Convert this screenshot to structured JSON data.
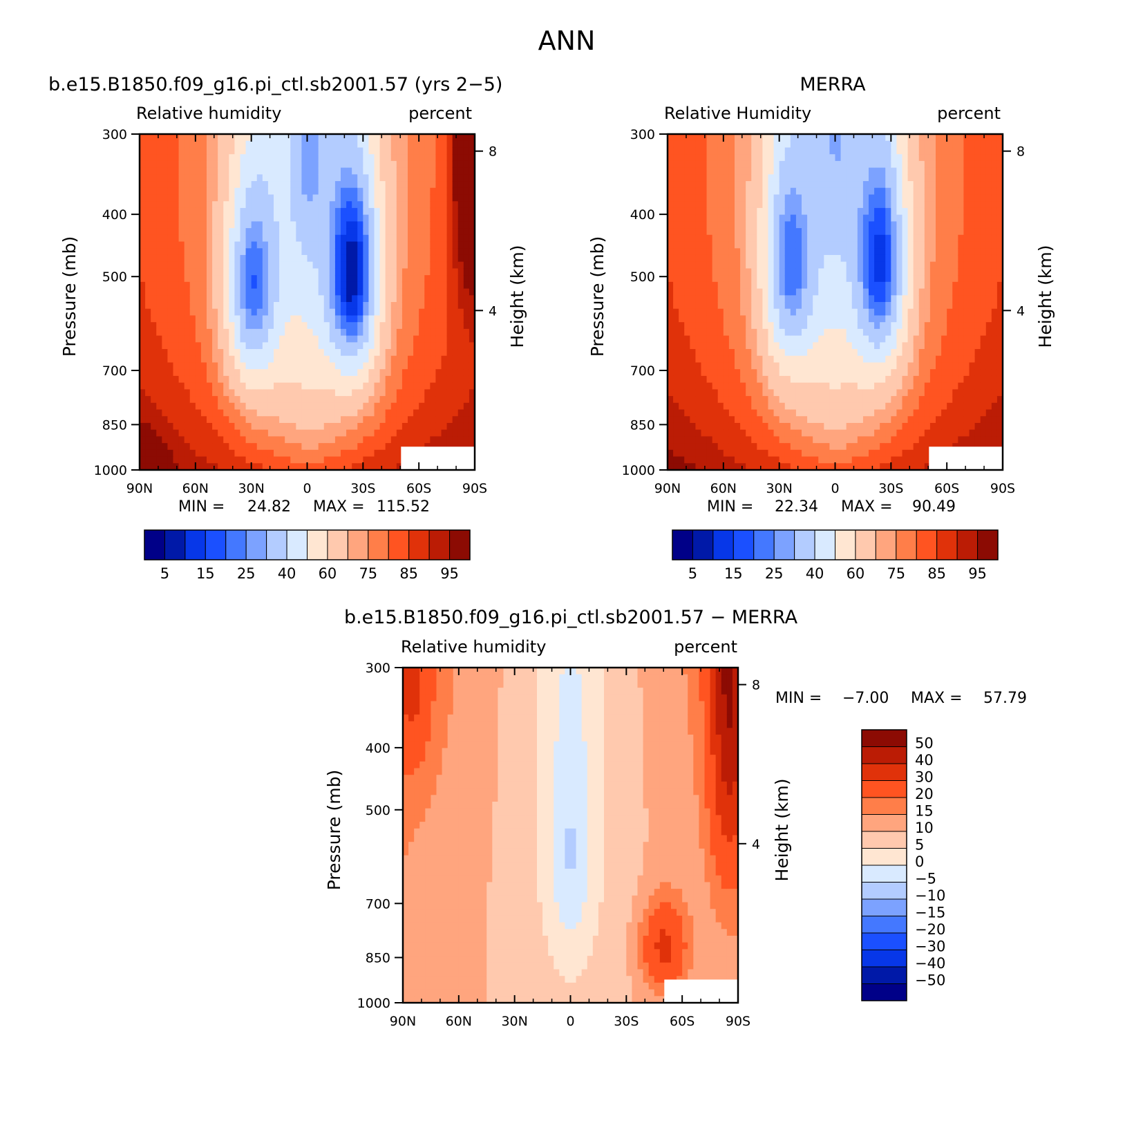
{
  "page_title": "ANN",
  "colors": {
    "abs_levels": [
      "#000088",
      "#0019a8",
      "#0737e8",
      "#1b50ff",
      "#4478ff",
      "#7ca2ff",
      "#b3ccff",
      "#d9eaff",
      "#ffe6d2",
      "#ffc9ae",
      "#ffa57e",
      "#ff7e49",
      "#ff5421",
      "#e0320a",
      "#bb1c05",
      "#8c0b03"
    ],
    "diff_levels": [
      "#000088",
      "#0019a8",
      "#0737e8",
      "#1b50ff",
      "#4478ff",
      "#7ca2ff",
      "#b3ccff",
      "#d9eaff",
      "#ffe6d2",
      "#ffc9ae",
      "#ffa57e",
      "#ff7e49",
      "#ff5421",
      "#e0320a",
      "#bb1c05",
      "#8c0b03"
    ]
  },
  "chart_data": [
    {
      "type": "heatmap",
      "id": "model",
      "title": "b.e15.B1850.f09_g16.pi_ctl.sb2001.57 (yrs 2−5)",
      "left_label": "Relative humidity",
      "right_label": "percent",
      "ylabel": "Pressure (mb)",
      "ylabel_right": "Height (km)",
      "x_ticks": [
        "90N",
        "60N",
        "30N",
        "0",
        "30S",
        "60S",
        "90S"
      ],
      "y_ticks": [
        300,
        400,
        500,
        700,
        850,
        1000
      ],
      "height_ticks": [
        8,
        4
      ],
      "ylim": [
        1000,
        300
      ],
      "xlim": [
        90,
        -90
      ],
      "min_label": "MIN =",
      "min_value": "24.82",
      "max_label": "MAX =",
      "max_value": "115.52",
      "colorbar_ticks": [
        "5",
        "15",
        "25",
        "40",
        "60",
        "75",
        "85",
        "95"
      ],
      "anomalies": [
        {
          "lat": 30,
          "p": 520,
          "sx": 14,
          "sp": 200,
          "amp": -45
        },
        {
          "lat": -25,
          "p": 500,
          "sx": 14,
          "sp": 200,
          "amp": -55
        },
        {
          "lat": 0,
          "p": 300,
          "sx": 10,
          "sp": 150,
          "amp": -20
        },
        {
          "lat": -88,
          "p": 300,
          "sx": 10,
          "sp": 220,
          "amp": 30
        },
        {
          "lat": 90,
          "p": 1000,
          "sx": 12,
          "sp": 120,
          "amp": 20
        }
      ]
    },
    {
      "type": "heatmap",
      "id": "obs",
      "title": "MERRA",
      "left_label": "Relative Humidity",
      "right_label": "percent",
      "ylabel": "Pressure (mb)",
      "ylabel_right": "Height (km)",
      "x_ticks": [
        "90N",
        "60N",
        "30N",
        "0",
        "30S",
        "60S",
        "90S"
      ],
      "y_ticks": [
        300,
        400,
        500,
        700,
        850,
        1000
      ],
      "height_ticks": [
        8,
        4
      ],
      "ylim": [
        1000,
        300
      ],
      "xlim": [
        90,
        -90
      ],
      "min_label": "MIN =",
      "min_value": "22.34",
      "max_label": "MAX =",
      "max_value": "90.49",
      "colorbar_ticks": [
        "5",
        "15",
        "25",
        "40",
        "60",
        "75",
        "85",
        "95"
      ],
      "anomalies": [
        {
          "lat": 25,
          "p": 480,
          "sx": 14,
          "sp": 200,
          "amp": -40
        },
        {
          "lat": -25,
          "p": 480,
          "sx": 14,
          "sp": 200,
          "amp": -48
        },
        {
          "lat": 0,
          "p": 300,
          "sx": 10,
          "sp": 150,
          "amp": -15
        }
      ]
    },
    {
      "type": "heatmap",
      "id": "diff",
      "title": "b.e15.B1850.f09_g16.pi_ctl.sb2001.57 − MERRA",
      "left_label": "Relative humidity",
      "right_label": "percent",
      "ylabel": "Pressure (mb)",
      "ylabel_right": "Height (km)",
      "x_ticks": [
        "90N",
        "60N",
        "30N",
        "0",
        "30S",
        "60S",
        "90S"
      ],
      "y_ticks": [
        300,
        400,
        500,
        700,
        850,
        1000
      ],
      "height_ticks": [
        8,
        4
      ],
      "ylim": [
        1000,
        300
      ],
      "xlim": [
        90,
        -90
      ],
      "min_label": "MIN =",
      "min_value": "−7.00",
      "max_label": "MAX =",
      "max_value": "57.79",
      "colorbar_ticks": [
        "50",
        "40",
        "30",
        "20",
        "15",
        "10",
        "5",
        "0",
        "−5",
        "−10",
        "−15",
        "−20",
        "−30",
        "−40",
        "−50"
      ],
      "anomalies": [
        {
          "lat": -50,
          "p": 820,
          "sx": 12,
          "sp": 130,
          "amp": 22
        },
        {
          "lat": -85,
          "p": 300,
          "sx": 10,
          "sp": 280,
          "amp": 35
        },
        {
          "lat": 85,
          "p": 320,
          "sx": 10,
          "sp": 100,
          "amp": 15
        },
        {
          "lat": 0,
          "p": 600,
          "sx": 12,
          "sp": 240,
          "amp": -9
        }
      ]
    }
  ]
}
